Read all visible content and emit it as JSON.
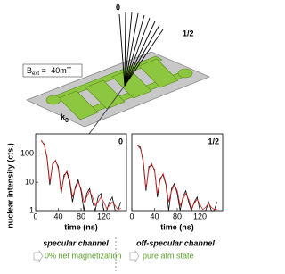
{
  "diagram": {
    "labels": [
      "0",
      "1/2"
    ],
    "field": "B",
    "field_sub": "ext",
    "field_value": " = -40mT",
    "wavevector": "k",
    "wavevector_sub": "0"
  },
  "chart_data": [
    {
      "type": "line",
      "label": "0",
      "ylabel": "nuclear intensity (cts.)",
      "xlabel": "time (ns)",
      "log_y": true,
      "xlim": [
        0,
        160
      ],
      "xticks": [
        0,
        40,
        80,
        120
      ],
      "ylim": [
        1,
        500
      ],
      "yticks": [
        1,
        10,
        100
      ],
      "x": [
        10,
        15,
        20,
        25,
        30,
        35,
        40,
        45,
        50,
        55,
        60,
        65,
        70,
        75,
        80,
        85,
        90,
        95,
        100,
        105,
        110,
        115,
        120,
        125,
        130,
        135,
        140,
        145,
        150
      ],
      "series": [
        {
          "color": "#000000",
          "values": [
            280,
            220,
            70,
            8,
            45,
            55,
            35,
            4,
            18,
            22,
            10,
            2,
            7,
            12,
            5,
            1,
            4,
            6,
            2,
            1,
            3,
            4,
            1,
            1,
            2,
            3,
            1,
            1,
            2
          ]
        },
        {
          "color": "#d62020",
          "values": [
            300,
            200,
            80,
            10,
            40,
            60,
            30,
            5,
            15,
            25,
            12,
            3,
            6,
            10,
            6,
            2,
            3,
            5,
            3,
            1.5,
            2,
            3,
            2,
            1.2,
            1.5,
            2,
            1.5,
            1.1,
            1.2
          ]
        }
      ]
    },
    {
      "type": "line",
      "label": "1/2",
      "xlabel": "time (ns)",
      "log_y": true,
      "xlim": [
        0,
        160
      ],
      "xticks": [
        0,
        40,
        80,
        120
      ],
      "ylim": [
        1,
        500
      ],
      "x": [
        10,
        15,
        20,
        25,
        30,
        35,
        40,
        45,
        50,
        55,
        60,
        65,
        70,
        75,
        80,
        85,
        90,
        95,
        100,
        105,
        110,
        115,
        120,
        125,
        130,
        135,
        140,
        145,
        150
      ],
      "series": [
        {
          "color": "#000000",
          "values": [
            190,
            170,
            50,
            5,
            35,
            40,
            28,
            3,
            14,
            18,
            8,
            1,
            6,
            9,
            4,
            1,
            3,
            5,
            2,
            1,
            2,
            3,
            1,
            1,
            1,
            2,
            1,
            1,
            2
          ]
        },
        {
          "color": "#d62020",
          "values": [
            200,
            150,
            60,
            6,
            30,
            45,
            25,
            4,
            12,
            20,
            9,
            2,
            5,
            8,
            5,
            1.5,
            2.5,
            4,
            2.5,
            1.2,
            1.8,
            2.5,
            1.6,
            1.1,
            1.3,
            1.8,
            1.3,
            1.1,
            1.1
          ]
        }
      ]
    }
  ],
  "legend": [
    {
      "title": "specular channel",
      "text": "0% net magnetization"
    },
    {
      "title": "off-specular channel",
      "text": "pure afm state"
    }
  ]
}
